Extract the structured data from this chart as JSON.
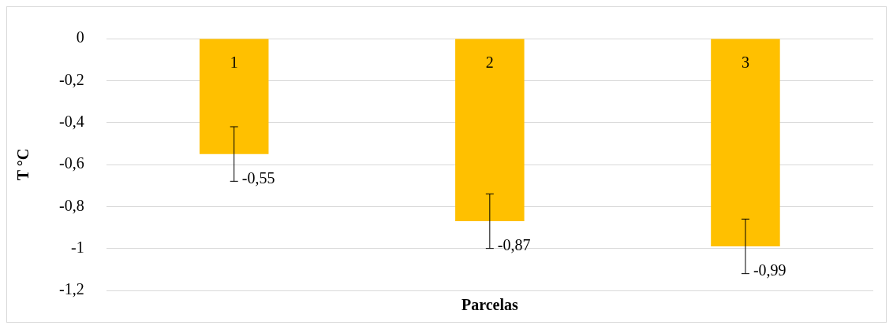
{
  "chart_data": {
    "type": "bar",
    "xlabel": "Parcelas",
    "ylabel": "T °C",
    "categories": [
      "1",
      "2",
      "3"
    ],
    "values": [
      -0.55,
      -0.87,
      -0.99
    ],
    "color": "#ffc000",
    "errors": [
      0.13,
      0.13,
      0.13
    ],
    "value_labels": [
      "-0,55",
      "-0,87",
      "-0,99"
    ],
    "ylim": [
      -1.2,
      0
    ],
    "yticks": [
      {
        "value": -1.2,
        "label": "-1,2"
      },
      -1,
      {
        "value": -0.8,
        "label": "-0,8"
      },
      {
        "value": -0.6,
        "label": "-0,6"
      },
      {
        "value": -0.4,
        "label": "-0,4"
      },
      {
        "value": -0.2,
        "label": "-0,2"
      },
      0
    ],
    "grid": "y",
    "legend": false
  }
}
